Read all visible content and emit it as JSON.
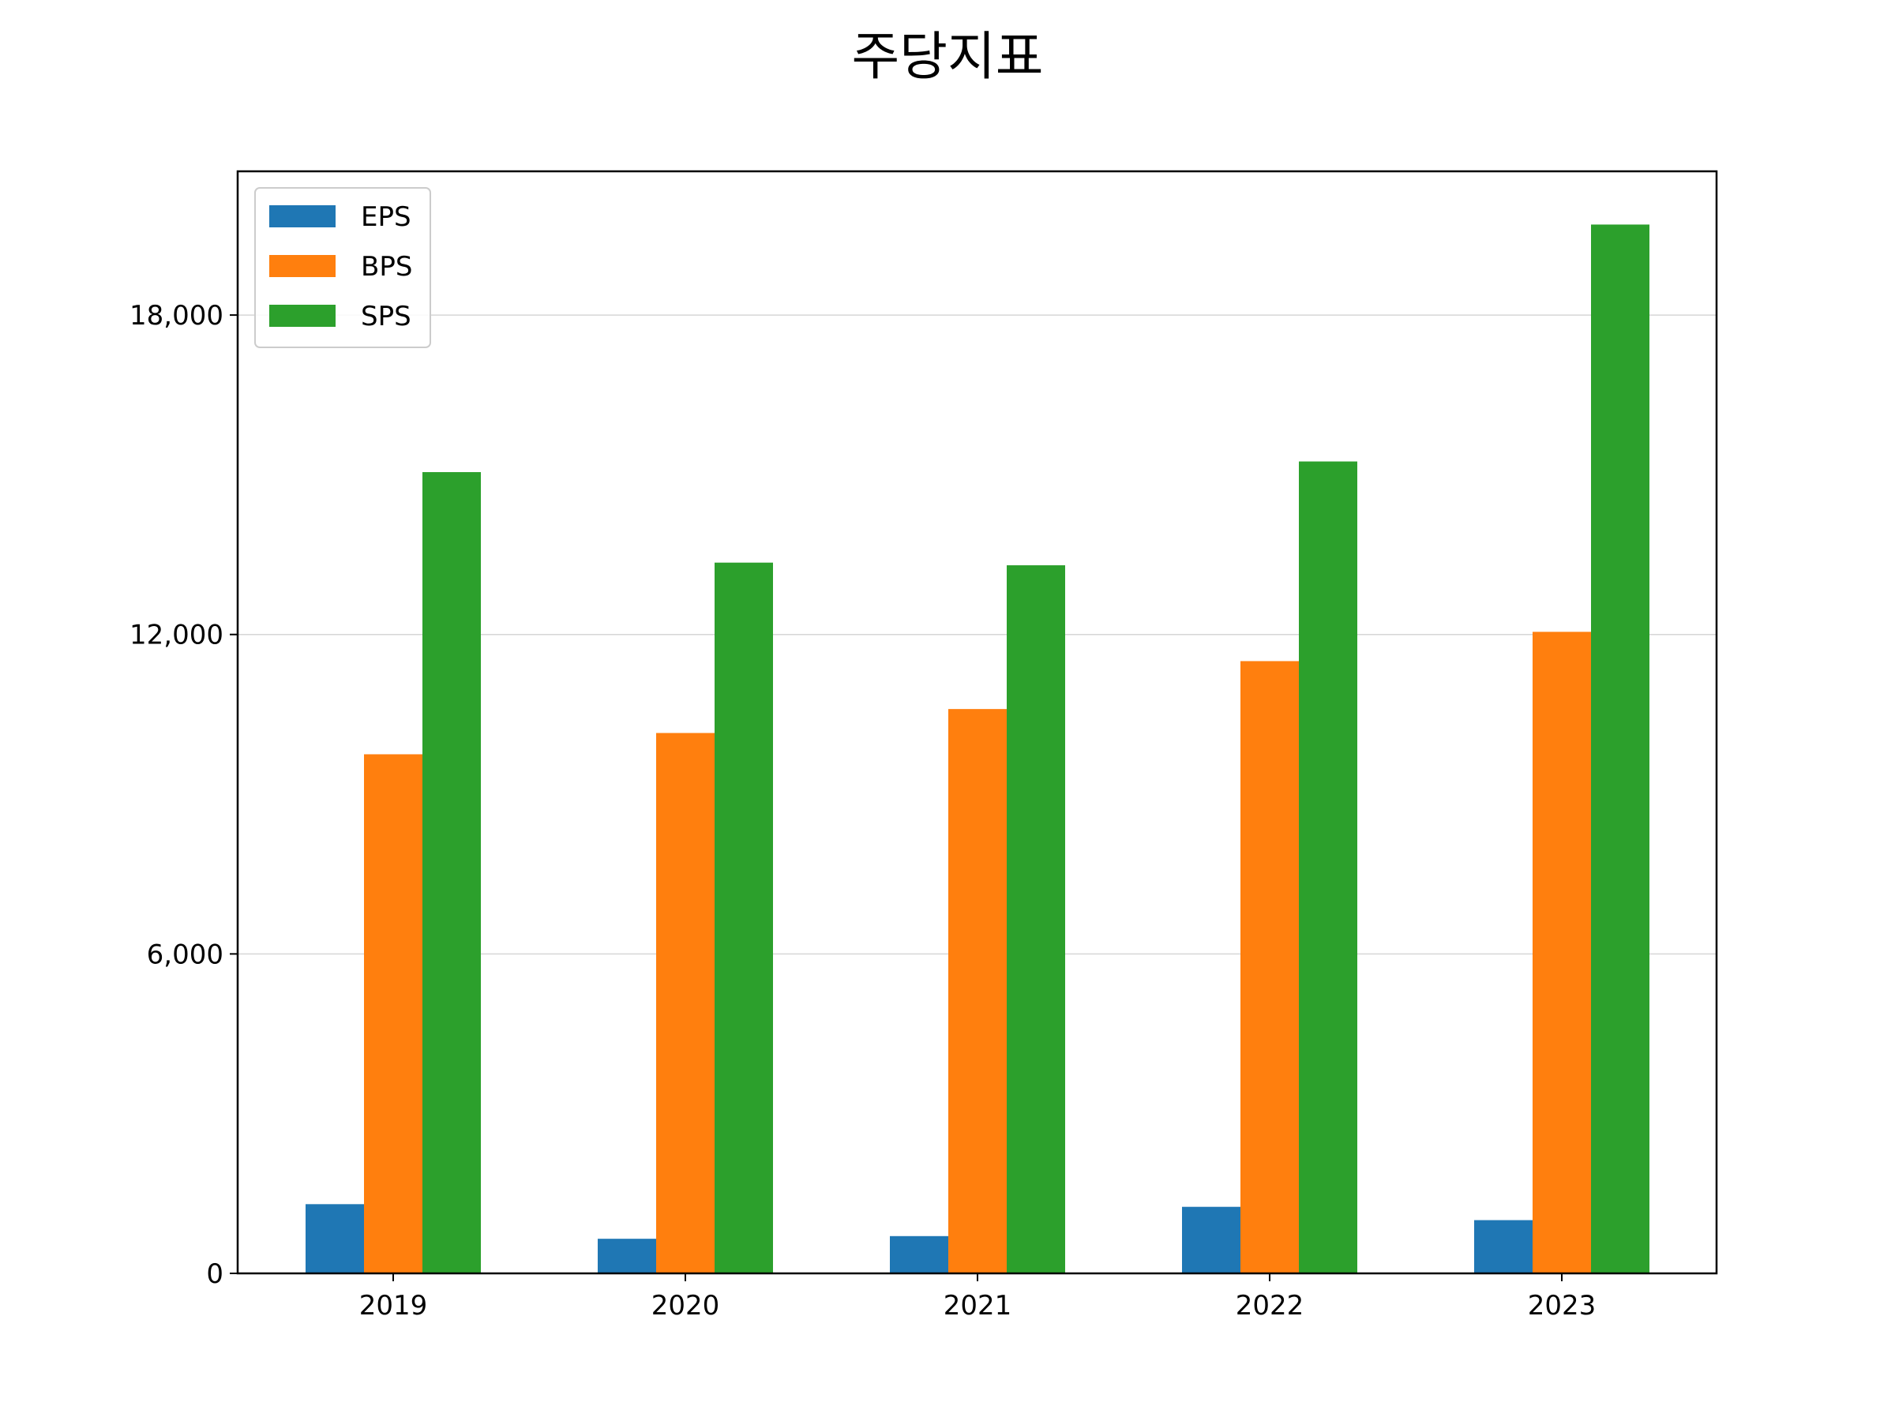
{
  "chart_data": {
    "type": "bar",
    "title": "주당지표",
    "xlabel": "",
    "ylabel": "",
    "categories": [
      "2019",
      "2020",
      "2021",
      "2022",
      "2023"
    ],
    "series": [
      {
        "name": "EPS",
        "color": "#1f77b4",
        "values": [
          1300,
          650,
          700,
          1250,
          1000
        ]
      },
      {
        "name": "BPS",
        "color": "#ff7f0e",
        "values": [
          9750,
          10150,
          10600,
          11500,
          12050
        ]
      },
      {
        "name": "SPS",
        "color": "#2ca02c",
        "values": [
          15050,
          13350,
          13300,
          15250,
          19700
        ]
      }
    ],
    "ylim": [
      0,
      20700
    ],
    "yticks": [
      {
        "value": 0,
        "label": "0"
      },
      {
        "value": 6000,
        "label": "6,000"
      },
      {
        "value": 12000,
        "label": "12,000"
      },
      {
        "value": 18000,
        "label": "18,000"
      }
    ],
    "grid": "horizontal",
    "legend_position": "upper-left"
  }
}
